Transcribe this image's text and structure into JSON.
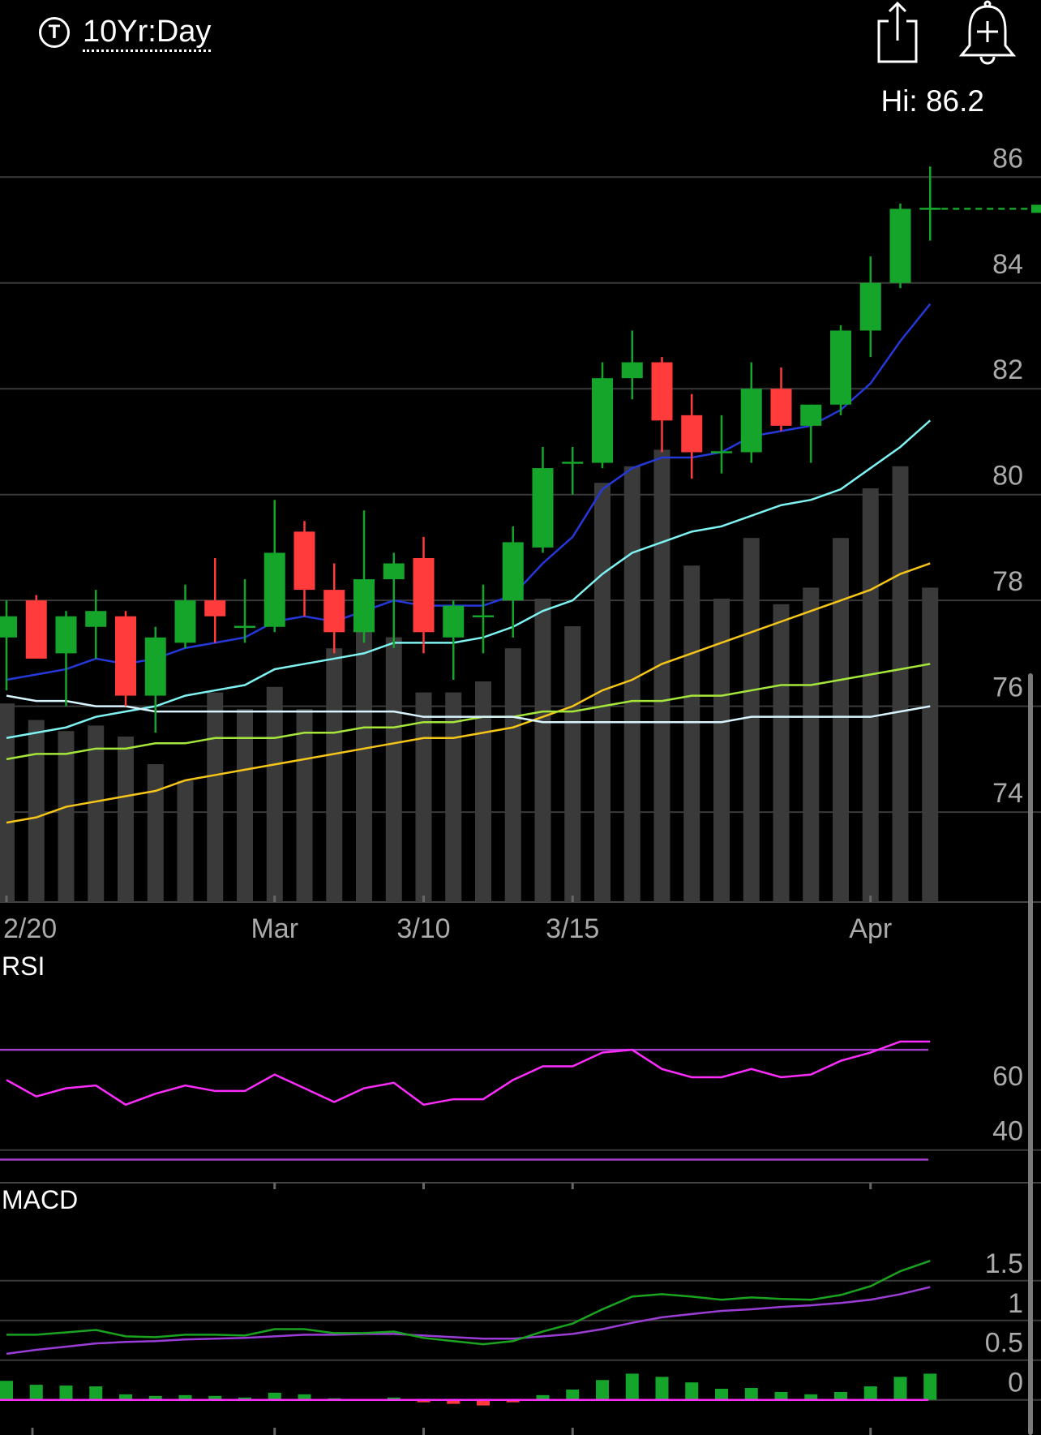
{
  "header": {
    "symbol_icon": "T",
    "timeframe": "10Yr:Day",
    "share_icon": "share-icon",
    "alert_icon": "add-alert-icon",
    "hi_label": "Hi: 86.2"
  },
  "colors": {
    "up": "#14a52a",
    "down": "#ff3b3b",
    "volume": "#3a3a3a",
    "ma_blue": "#2538d8",
    "ma_cyan": "#7ff2f2",
    "ma_yellow": "#f5c518",
    "ma_lime": "#a6e63b",
    "ma_white": "#d7f4ff",
    "rsi": "#ff2cff",
    "rsi_bands": "#a33ec8",
    "macd_line": "#19a31f",
    "macd_signal": "#9a3dd6",
    "grid": "#3a3a3a"
  },
  "chart_data": [
    {
      "type": "candlestick",
      "ylim": [
        72.3,
        87.2
      ],
      "y_ticks": [
        "86",
        "84",
        "82",
        "80",
        "78",
        "76",
        "74"
      ],
      "y_tick_values": [
        86,
        84,
        82,
        80,
        78,
        76,
        74
      ],
      "x_labels": [
        {
          "index": 0,
          "label": "2/20"
        },
        {
          "index": 9,
          "label": "Mar"
        },
        {
          "index": 14,
          "label": "3/10"
        },
        {
          "index": 19,
          "label": "3/15"
        },
        {
          "index": 29,
          "label": "Apr"
        }
      ],
      "candles": [
        {
          "o": 77.3,
          "h": 78.0,
          "l": 76.3,
          "c": 77.7
        },
        {
          "o": 78.0,
          "h": 78.1,
          "l": 77.0,
          "c": 76.9
        },
        {
          "o": 77.0,
          "h": 77.8,
          "l": 76.0,
          "c": 77.7
        },
        {
          "o": 77.5,
          "h": 78.2,
          "l": 76.9,
          "c": 77.8
        },
        {
          "o": 77.7,
          "h": 77.8,
          "l": 76.0,
          "c": 76.2
        },
        {
          "o": 76.2,
          "h": 77.5,
          "l": 75.5,
          "c": 77.3
        },
        {
          "o": 77.2,
          "h": 78.3,
          "l": 77.1,
          "c": 78.0
        },
        {
          "o": 78.0,
          "h": 78.8,
          "l": 77.2,
          "c": 77.7
        },
        {
          "o": 77.5,
          "h": 78.4,
          "l": 77.2,
          "c": 77.5
        },
        {
          "o": 77.5,
          "h": 79.9,
          "l": 77.4,
          "c": 78.9
        },
        {
          "o": 79.3,
          "h": 79.5,
          "l": 77.7,
          "c": 78.2
        },
        {
          "o": 78.2,
          "h": 78.7,
          "l": 77.0,
          "c": 77.4
        },
        {
          "o": 77.4,
          "h": 79.7,
          "l": 77.2,
          "c": 78.4
        },
        {
          "o": 78.4,
          "h": 78.9,
          "l": 77.1,
          "c": 78.7
        },
        {
          "o": 78.8,
          "h": 79.2,
          "l": 77.0,
          "c": 77.4
        },
        {
          "o": 77.3,
          "h": 78.0,
          "l": 76.5,
          "c": 77.9
        },
        {
          "o": 77.7,
          "h": 78.3,
          "l": 77.0,
          "c": 77.7
        },
        {
          "o": 78.0,
          "h": 79.4,
          "l": 77.3,
          "c": 79.1
        },
        {
          "o": 79.0,
          "h": 80.9,
          "l": 78.9,
          "c": 80.5
        },
        {
          "o": 80.6,
          "h": 80.9,
          "l": 80.0,
          "c": 80.6
        },
        {
          "o": 80.6,
          "h": 82.5,
          "l": 80.5,
          "c": 82.2
        },
        {
          "o": 82.2,
          "h": 83.1,
          "l": 81.8,
          "c": 82.5
        },
        {
          "o": 82.5,
          "h": 82.6,
          "l": 80.8,
          "c": 81.4
        },
        {
          "o": 81.5,
          "h": 81.9,
          "l": 80.3,
          "c": 80.8
        },
        {
          "o": 80.8,
          "h": 81.5,
          "l": 80.4,
          "c": 80.8
        },
        {
          "o": 80.8,
          "h": 82.5,
          "l": 80.6,
          "c": 82.0
        },
        {
          "o": 82.0,
          "h": 82.4,
          "l": 81.2,
          "c": 81.3
        },
        {
          "o": 81.3,
          "h": 81.7,
          "l": 80.6,
          "c": 81.7
        },
        {
          "o": 81.7,
          "h": 83.2,
          "l": 81.5,
          "c": 83.1
        },
        {
          "o": 83.1,
          "h": 84.5,
          "l": 82.6,
          "c": 84.0
        },
        {
          "o": 84.0,
          "h": 85.5,
          "l": 83.9,
          "c": 85.4
        },
        {
          "o": 85.4,
          "h": 86.2,
          "l": 84.8,
          "c": 85.4
        }
      ],
      "volume": [
        0.36,
        0.33,
        0.31,
        0.32,
        0.3,
        0.25,
        0.22,
        0.38,
        0.35,
        0.39,
        0.35,
        0.46,
        0.5,
        0.48,
        0.38,
        0.38,
        0.4,
        0.46,
        0.55,
        0.5,
        0.76,
        0.79,
        0.82,
        0.61,
        0.55,
        0.66,
        0.54,
        0.57,
        0.66,
        0.75,
        0.79,
        0.57
      ],
      "last_price": 85.4,
      "moving_averages": [
        {
          "color_key": "ma_blue",
          "values": [
            76.5,
            76.6,
            76.7,
            76.9,
            76.8,
            76.9,
            77.1,
            77.2,
            77.3,
            77.6,
            77.7,
            77.6,
            77.8,
            78.0,
            77.9,
            77.9,
            77.9,
            78.1,
            78.7,
            79.2,
            80.1,
            80.5,
            80.7,
            80.7,
            80.8,
            81.1,
            81.2,
            81.3,
            81.6,
            82.1,
            82.9,
            83.6
          ]
        },
        {
          "color_key": "ma_cyan",
          "values": [
            75.4,
            75.5,
            75.6,
            75.8,
            75.9,
            76.0,
            76.2,
            76.3,
            76.4,
            76.7,
            76.8,
            76.9,
            77.0,
            77.2,
            77.2,
            77.2,
            77.3,
            77.5,
            77.8,
            78.0,
            78.5,
            78.9,
            79.1,
            79.3,
            79.4,
            79.6,
            79.8,
            79.9,
            80.1,
            80.5,
            80.9,
            81.4
          ]
        },
        {
          "color_key": "ma_yellow",
          "values": [
            73.8,
            73.9,
            74.1,
            74.2,
            74.3,
            74.4,
            74.6,
            74.7,
            74.8,
            74.9,
            75.0,
            75.1,
            75.2,
            75.3,
            75.4,
            75.4,
            75.5,
            75.6,
            75.8,
            76.0,
            76.3,
            76.5,
            76.8,
            77.0,
            77.2,
            77.4,
            77.6,
            77.8,
            78.0,
            78.2,
            78.5,
            78.7
          ]
        },
        {
          "color_key": "ma_lime",
          "values": [
            75.0,
            75.1,
            75.1,
            75.2,
            75.2,
            75.3,
            75.3,
            75.4,
            75.4,
            75.4,
            75.5,
            75.5,
            75.6,
            75.6,
            75.7,
            75.7,
            75.8,
            75.8,
            75.9,
            75.9,
            76.0,
            76.1,
            76.1,
            76.2,
            76.2,
            76.3,
            76.4,
            76.4,
            76.5,
            76.6,
            76.7,
            76.8
          ]
        },
        {
          "color_key": "ma_white",
          "values": [
            76.2,
            76.1,
            76.1,
            76.0,
            76.0,
            75.9,
            75.9,
            75.9,
            75.9,
            75.9,
            75.9,
            75.9,
            75.9,
            75.9,
            75.8,
            75.8,
            75.8,
            75.8,
            75.7,
            75.7,
            75.7,
            75.7,
            75.7,
            75.7,
            75.7,
            75.8,
            75.8,
            75.8,
            75.8,
            75.8,
            75.9,
            76.0
          ]
        }
      ]
    },
    {
      "type": "line",
      "title": "RSI",
      "ylim": [
        21,
        86
      ],
      "y_ticks": [
        "60",
        "40"
      ],
      "y_tick_values": [
        60,
        40
      ],
      "bands": [
        70,
        30
      ],
      "values": [
        59,
        53,
        56,
        57,
        50,
        54,
        57,
        55,
        55,
        61,
        56,
        51,
        56,
        58,
        50,
        52,
        52,
        59,
        64,
        64,
        69,
        70,
        63,
        60,
        60,
        63,
        60,
        61,
        66,
        69,
        73,
        73
      ]
    },
    {
      "type": "line",
      "title": "MACD",
      "ylim": [
        -0.35,
        2.1
      ],
      "y_ticks": [
        "1.5",
        "1",
        "0.5",
        "0"
      ],
      "y_tick_values": [
        1.5,
        1.0,
        0.5,
        0
      ],
      "macd": [
        0.82,
        0.82,
        0.85,
        0.88,
        0.8,
        0.79,
        0.82,
        0.82,
        0.81,
        0.89,
        0.89,
        0.84,
        0.84,
        0.86,
        0.78,
        0.74,
        0.7,
        0.74,
        0.86,
        0.96,
        1.14,
        1.3,
        1.33,
        1.3,
        1.26,
        1.29,
        1.27,
        1.26,
        1.32,
        1.43,
        1.62,
        1.75
      ],
      "signal": [
        0.58,
        0.63,
        0.67,
        0.71,
        0.73,
        0.74,
        0.76,
        0.77,
        0.78,
        0.8,
        0.82,
        0.82,
        0.83,
        0.83,
        0.81,
        0.79,
        0.77,
        0.77,
        0.8,
        0.83,
        0.89,
        0.97,
        1.04,
        1.08,
        1.12,
        1.14,
        1.17,
        1.19,
        1.22,
        1.26,
        1.33,
        1.42
      ],
      "histogram": [
        0.24,
        0.19,
        0.18,
        0.17,
        0.07,
        0.05,
        0.06,
        0.05,
        0.03,
        0.09,
        0.07,
        0.02,
        0.01,
        0.03,
        -0.03,
        -0.05,
        -0.07,
        -0.03,
        0.06,
        0.13,
        0.25,
        0.33,
        0.29,
        0.22,
        0.14,
        0.15,
        0.1,
        0.07,
        0.1,
        0.17,
        0.29,
        0.33
      ]
    }
  ]
}
